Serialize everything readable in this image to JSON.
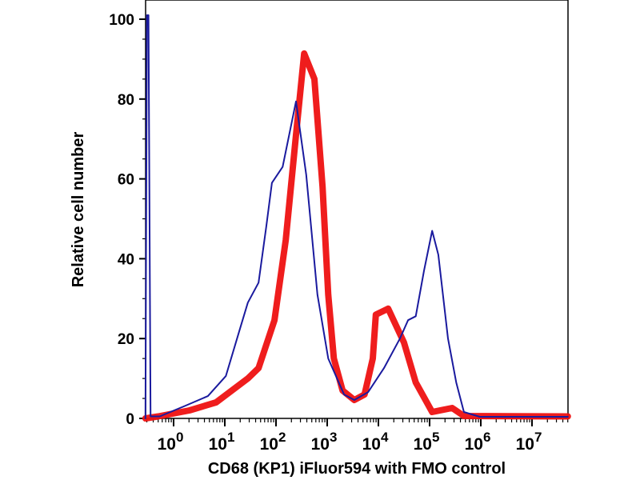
{
  "chart_data": {
    "type": "line",
    "title": "",
    "xlabel": "CD68 (KP1) iFluor594 with FMO control",
    "ylabel": "Relative cell number",
    "xscale": "log10",
    "xlim_log10": [
      -0.55,
      7.7
    ],
    "ylim": [
      0,
      104
    ],
    "x_ticks": [
      {
        "exp": 0,
        "base": "10",
        "sup": "0"
      },
      {
        "exp": 1,
        "base": "10",
        "sup": "1"
      },
      {
        "exp": 2,
        "base": "10",
        "sup": "2"
      },
      {
        "exp": 3,
        "base": "10",
        "sup": "3"
      },
      {
        "exp": 4,
        "base": "10",
        "sup": "4"
      },
      {
        "exp": 5,
        "base": "10",
        "sup": "5"
      },
      {
        "exp": 6,
        "base": "10",
        "sup": "6"
      },
      {
        "exp": 7,
        "base": "10",
        "sup": "7"
      }
    ],
    "y_ticks": [
      "0",
      "20",
      "40",
      "60",
      "80",
      "100"
    ],
    "grid": false,
    "legend": "none",
    "series": [
      {
        "name": "CD68 (KP1) iFluor594",
        "color": "#ee1111",
        "points": [
          [
            -0.55,
            0
          ],
          [
            -0.3,
            0.5
          ],
          [
            0.31,
            2
          ],
          [
            0.83,
            4
          ],
          [
            1.45,
            10
          ],
          [
            1.66,
            12.6
          ],
          [
            1.97,
            24.6
          ],
          [
            2.19,
            44.7
          ],
          [
            2.39,
            71
          ],
          [
            2.55,
            91.4
          ],
          [
            2.75,
            85
          ],
          [
            2.91,
            58
          ],
          [
            3.02,
            31
          ],
          [
            3.13,
            15
          ],
          [
            3.3,
            7
          ],
          [
            3.53,
            4.6
          ],
          [
            3.73,
            6
          ],
          [
            3.89,
            15
          ],
          [
            3.95,
            26
          ],
          [
            4.19,
            27.5
          ],
          [
            4.5,
            19
          ],
          [
            4.73,
            9
          ],
          [
            5.05,
            1.6
          ],
          [
            5.44,
            2.6
          ],
          [
            5.67,
            0.6
          ],
          [
            7.7,
            0.5
          ]
        ]
      },
      {
        "name": "FMO control",
        "color": "#1a1a9e",
        "points": [
          [
            -0.55,
            0
          ],
          [
            -0.52,
            101
          ],
          [
            -0.49,
            101
          ],
          [
            -0.45,
            0.5
          ],
          [
            -0.27,
            0.5
          ],
          [
            0.2,
            3
          ],
          [
            0.67,
            5.6
          ],
          [
            1.02,
            10.6
          ],
          [
            1.3,
            22.6
          ],
          [
            1.45,
            29
          ],
          [
            1.66,
            34
          ],
          [
            1.81,
            48
          ],
          [
            1.92,
            59
          ],
          [
            2.13,
            63
          ],
          [
            2.39,
            79.4
          ],
          [
            2.59,
            61
          ],
          [
            2.81,
            31
          ],
          [
            3.02,
            15
          ],
          [
            3.33,
            6
          ],
          [
            3.53,
            4.6
          ],
          [
            3.8,
            6.6
          ],
          [
            4.11,
            12.6
          ],
          [
            4.42,
            20
          ],
          [
            4.58,
            24.6
          ],
          [
            4.73,
            25.6
          ],
          [
            4.89,
            37
          ],
          [
            5.05,
            47
          ],
          [
            5.17,
            41
          ],
          [
            5.36,
            20
          ],
          [
            5.52,
            9
          ],
          [
            5.67,
            1.6
          ],
          [
            5.98,
            0.4
          ],
          [
            7.7,
            0.4
          ]
        ]
      }
    ]
  }
}
